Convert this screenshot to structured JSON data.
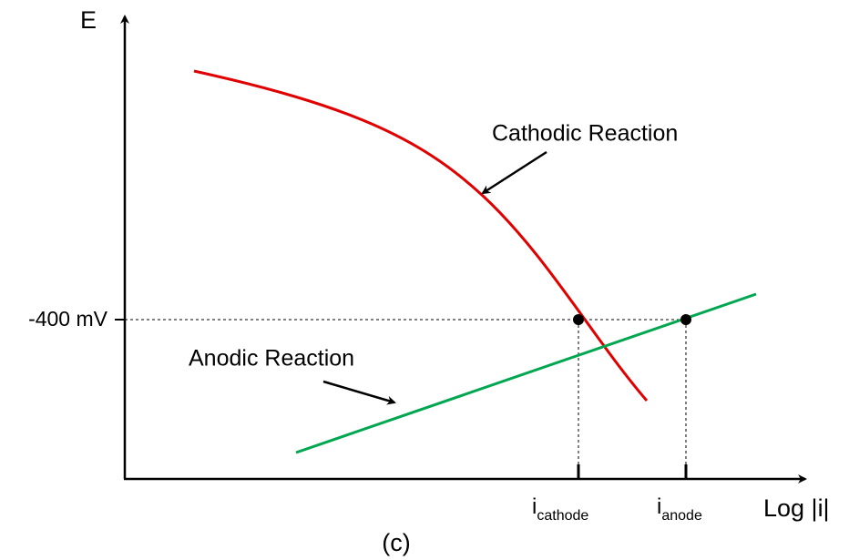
{
  "axes": {
    "y_label": "E",
    "x_label": "Log |i|",
    "y_marker": "-400 mV"
  },
  "curves": {
    "cathodic": "Cathodic Reaction",
    "anodic": "Anodic Reaction"
  },
  "x_markers": {
    "cathode": {
      "main": "i",
      "sub": "cathode"
    },
    "anode": {
      "main": "i",
      "sub": "anode"
    }
  },
  "caption": "(c)"
}
